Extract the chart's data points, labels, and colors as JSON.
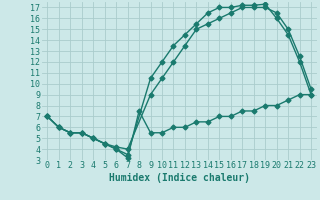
{
  "xlabel": "Humidex (Indice chaleur)",
  "bg_color": "#cce8e8",
  "grid_color": "#aacccc",
  "line_color": "#1a7a6e",
  "xlim": [
    -0.5,
    23.5
  ],
  "ylim": [
    3,
    17.5
  ],
  "xticks": [
    0,
    1,
    2,
    3,
    4,
    5,
    6,
    7,
    8,
    9,
    10,
    11,
    12,
    13,
    14,
    15,
    16,
    17,
    18,
    19,
    20,
    21,
    22,
    23
  ],
  "yticks": [
    3,
    4,
    5,
    6,
    7,
    8,
    9,
    10,
    11,
    12,
    13,
    14,
    15,
    16,
    17
  ],
  "line1_x": [
    0,
    1,
    2,
    3,
    4,
    5,
    6,
    7,
    9,
    10,
    11,
    12,
    13,
    14,
    15,
    16,
    17,
    18,
    19,
    20,
    21,
    22,
    23
  ],
  "line1_y": [
    7,
    6,
    5.5,
    5.5,
    5.0,
    4.5,
    4.2,
    4.0,
    9.0,
    10.5,
    12.0,
    13.5,
    15.0,
    15.5,
    16.0,
    16.5,
    17.0,
    17.0,
    17.0,
    16.5,
    15.0,
    12.5,
    9.5
  ],
  "line2_x": [
    0,
    1,
    2,
    3,
    4,
    5,
    6,
    7,
    9,
    10,
    11,
    12,
    13,
    14,
    15,
    16,
    17,
    18,
    19,
    20,
    21,
    22,
    23
  ],
  "line2_y": [
    7,
    6,
    5.5,
    5.5,
    5.0,
    4.5,
    4.0,
    3.5,
    10.5,
    12.0,
    13.5,
    14.5,
    15.5,
    16.5,
    17.0,
    17.0,
    17.2,
    17.2,
    17.3,
    16.0,
    14.5,
    12.0,
    9.0
  ],
  "line3_x": [
    0,
    1,
    2,
    3,
    4,
    5,
    6,
    7,
    8,
    9,
    10,
    11,
    12,
    13,
    14,
    15,
    16,
    17,
    18,
    19,
    20,
    21,
    22,
    23
  ],
  "line3_y": [
    7.0,
    6.0,
    5.5,
    5.5,
    5.0,
    4.5,
    4.0,
    3.2,
    7.5,
    5.5,
    5.5,
    6.0,
    6.0,
    6.5,
    6.5,
    7.0,
    7.0,
    7.5,
    7.5,
    8.0,
    8.0,
    8.5,
    9.0,
    9.0
  ],
  "marker": "D",
  "markersize": 2.5,
  "linewidth": 1.0,
  "fontsize_label": 7,
  "fontsize_tick": 6
}
